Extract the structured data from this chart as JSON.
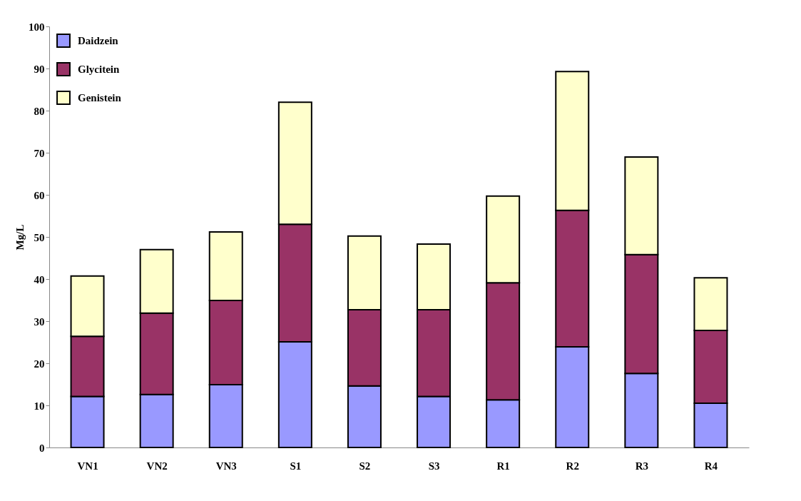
{
  "chart_data": {
    "type": "bar",
    "stacked": true,
    "ylabel": "Mg/L",
    "categories": [
      "VN1",
      "VN2",
      "VN3",
      "S1",
      "S2",
      "S3",
      "R1",
      "R2",
      "R3",
      "R4"
    ],
    "series": [
      {
        "name": "Daidzein",
        "color": "#9999ff",
        "values": [
          12.1,
          12.6,
          14.9,
          25.1,
          14.6,
          12.1,
          11.3,
          23.9,
          17.6,
          10.5
        ]
      },
      {
        "name": "Glycitein",
        "color": "#993366",
        "values": [
          14.3,
          19.3,
          20.0,
          27.9,
          18.1,
          20.6,
          27.8,
          32.4,
          28.2,
          17.3
        ]
      },
      {
        "name": "Genistein",
        "color": "#ffffcc",
        "values": [
          14.3,
          15.1,
          16.3,
          29.0,
          17.5,
          15.6,
          20.6,
          33.0,
          23.2,
          12.5
        ]
      }
    ],
    "ylim": [
      0,
      100
    ],
    "yticks": [
      0,
      10,
      20,
      30,
      40,
      50,
      60,
      70,
      80,
      90,
      100
    ],
    "grid": false,
    "legend": "top left"
  }
}
